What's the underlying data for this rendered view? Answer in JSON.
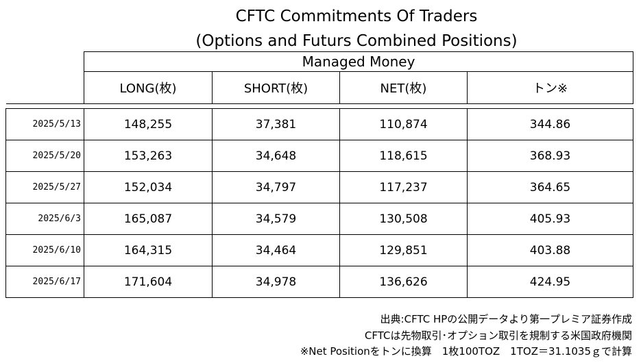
{
  "title": {
    "line1": "CFTC Commitments Of Traders",
    "line2": "(Options and Futurs Combined Positions)"
  },
  "table": {
    "group_header": "Managed Money",
    "columns": [
      "LONG(枚)",
      "SHORT(枚)",
      "NET(枚)",
      "トン※"
    ],
    "rows": [
      {
        "date": "2025/5/13",
        "long": "148,255",
        "short": "37,381",
        "net": "110,874",
        "ton": "344.86"
      },
      {
        "date": "2025/5/20",
        "long": "153,263",
        "short": "34,648",
        "net": "118,615",
        "ton": "368.93"
      },
      {
        "date": "2025/5/27",
        "long": "152,034",
        "short": "34,797",
        "net": "117,237",
        "ton": "364.65"
      },
      {
        "date": "2025/6/3",
        "long": "165,087",
        "short": "34,579",
        "net": "130,508",
        "ton": "405.93"
      },
      {
        "date": "2025/6/10",
        "long": "164,315",
        "short": "34,464",
        "net": "129,851",
        "ton": "403.88"
      },
      {
        "date": "2025/6/17",
        "long": "171,604",
        "short": "34,978",
        "net": "136,626",
        "ton": "424.95"
      }
    ]
  },
  "notes": {
    "source": "出典:CFTC HPの公開データより第一プレミア証券作成",
    "cftc": "CFTCは先物取引･オプション取引を規制する米国政府機関",
    "conversion": "※Net Positionをトンに換算　1枚100TOZ　1TOZ＝31.1035ｇで計算"
  }
}
